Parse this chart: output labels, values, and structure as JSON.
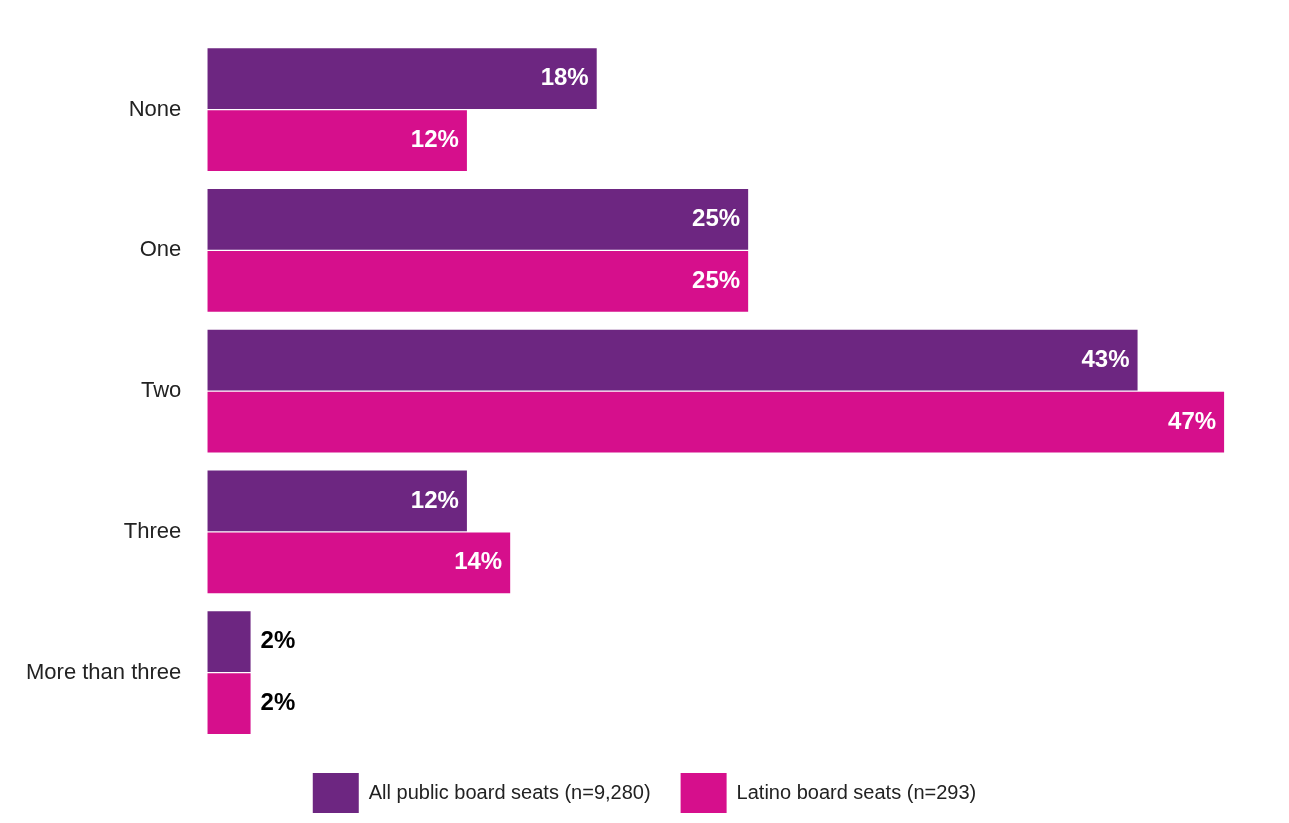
{
  "chart_data": {
    "type": "bar",
    "orientation": "horizontal",
    "categories": [
      "None",
      "One",
      "Two",
      "Three",
      "More than three"
    ],
    "series": [
      {
        "name": "All public board seats (n=9,280)",
        "color": "#6d2681",
        "values": [
          18,
          25,
          43,
          12,
          2
        ],
        "value_labels": [
          "18%",
          "25%",
          "43%",
          "12%",
          "2%"
        ]
      },
      {
        "name": "Latino board seats (n=293)",
        "color": "#d60f8c",
        "values": [
          12,
          25,
          47,
          14,
          2
        ],
        "value_labels": [
          "12%",
          "25%",
          "47%",
          "14%",
          "2%"
        ]
      }
    ],
    "legend": "bottom",
    "grid": false
  }
}
